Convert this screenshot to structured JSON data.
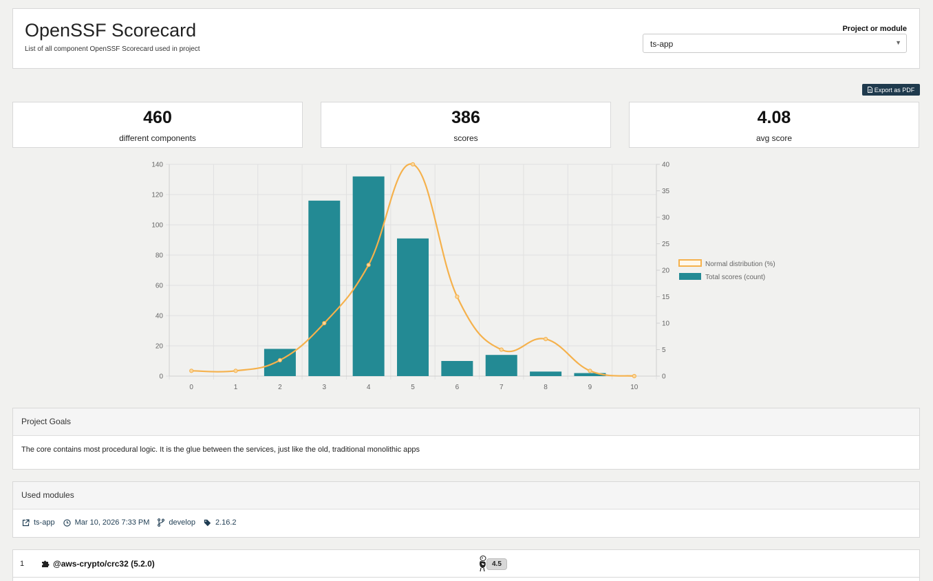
{
  "header": {
    "title": "OpenSSF Scorecard",
    "subtitle": "List of all component OpenSSF Scorecard used in project",
    "project_label": "Project or module",
    "project_value": "ts-app"
  },
  "toolbar": {
    "export_label": "Export as PDF"
  },
  "stats": [
    {
      "value": "460",
      "label": "different components"
    },
    {
      "value": "386",
      "label": "scores"
    },
    {
      "value": "4.08",
      "label": "avg score"
    }
  ],
  "chart_data": {
    "type": "bar",
    "categories": [
      "0",
      "1",
      "2",
      "3",
      "4",
      "5",
      "6",
      "7",
      "8",
      "9",
      "10"
    ],
    "series": [
      {
        "name": "Total scores (count)",
        "type": "bar",
        "axis": "left",
        "color": "#238a94",
        "values": [
          0,
          0,
          18,
          116,
          132,
          91,
          10,
          14,
          3,
          2,
          0
        ]
      },
      {
        "name": "Normal distribution (%)",
        "type": "line",
        "axis": "right",
        "color": "#f5b14c",
        "values": [
          1,
          1,
          3,
          10,
          21,
          40,
          15,
          5,
          7,
          1,
          0
        ]
      }
    ],
    "yleft": {
      "min": 0,
      "max": 140,
      "ticks": [
        0,
        20,
        40,
        60,
        80,
        100,
        120,
        140
      ]
    },
    "yright": {
      "min": 0,
      "max": 40,
      "ticks": [
        0,
        5,
        10,
        15,
        20,
        25,
        30,
        35,
        40
      ]
    },
    "legend_position": "right",
    "grid": true
  },
  "goals": {
    "heading": "Project Goals",
    "text": "The core contains most procedural logic. It is the glue between the services, just like the old, traditional monolithic apps"
  },
  "modules": {
    "heading": "Used modules",
    "name": "ts-app",
    "date": "Mar 10, 2026 7:33 PM",
    "branch": "develop",
    "version": "2.16.2"
  },
  "components": [
    {
      "index": "1",
      "name": "@aws-crypto/crc32 (5.2.0)",
      "score": "4.5"
    }
  ]
}
